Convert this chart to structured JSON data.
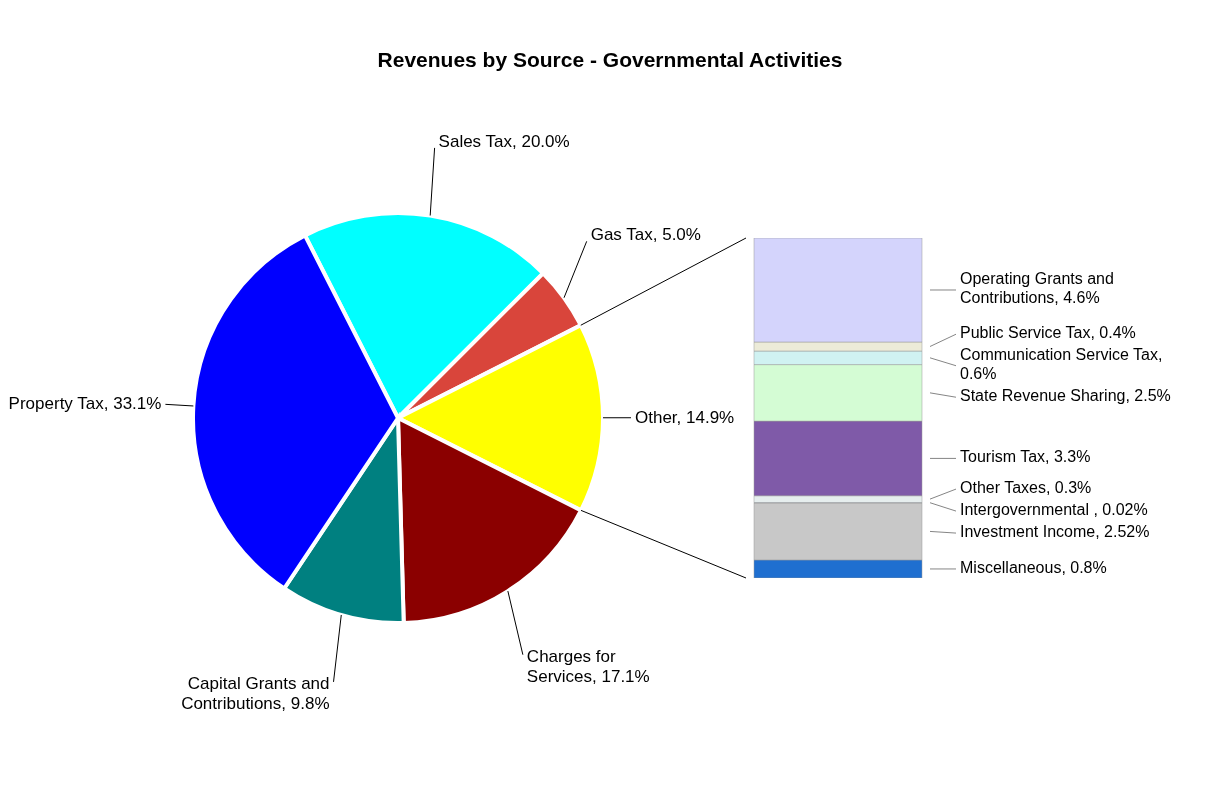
{
  "chart_data": [
    {
      "type": "pie",
      "title": "Revenues by Source - Governmental Activities",
      "categories": [
        "Sales Tax",
        "Gas Tax",
        "Other",
        "Charges for Services",
        "Capital Grants and Contributions",
        "Property Tax"
      ],
      "values": [
        20.0,
        5.0,
        14.9,
        17.1,
        9.8,
        33.1
      ],
      "value_labels": [
        "20.0%",
        "5.0%",
        "14.9%",
        "17.1%",
        "9.8%",
        "33.1%"
      ],
      "colors": [
        "#00ffff",
        "#d9453b",
        "#ffff00",
        "#8b0000",
        "#008080",
        "#0000ff"
      ]
    },
    {
      "type": "bar",
      "stacked": true,
      "categories": [
        null
      ],
      "data_labels": true,
      "series": [
        {
          "name": "Miscellaneous,",
          "color": "#1f6fd0",
          "values": [
            0.8
          ],
          "value_labels": [
            "0.8%"
          ]
        },
        {
          "name": "Investment Income,",
          "color": "#c8c8c8",
          "values": [
            2.52
          ],
          "value_labels": [
            "2.52%"
          ]
        },
        {
          "name": "Intergovernmental ,",
          "color": "#4f81bd",
          "values": [
            0.02
          ],
          "value_labels": [
            "0.02%"
          ]
        },
        {
          "name": "Other Taxes,",
          "color": "#e6eeee",
          "values": [
            0.3
          ],
          "value_labels": [
            "0.3%"
          ]
        },
        {
          "name": "Tourism Tax,",
          "color": "#7f5aa8",
          "values": [
            3.3
          ],
          "value_labels": [
            "3.3%"
          ]
        },
        {
          "name": "State Revenue Sharing,",
          "color": "#d4fcd4",
          "values": [
            2.5
          ],
          "value_labels": [
            "2.5%"
          ]
        },
        {
          "name": "Communication Service Tax,",
          "color": "#d0f2f2",
          "values": [
            0.6
          ],
          "value_labels": [
            "0.6%"
          ]
        },
        {
          "name": "Public Service Tax,",
          "color": "#ecebd8",
          "values": [
            0.4
          ],
          "value_labels": [
            "0.4%"
          ]
        },
        {
          "name": "Operating Grants and Contributions,",
          "color": "#d4d4fc",
          "values": [
            4.6
          ],
          "value_labels": [
            "4.6%"
          ]
        }
      ]
    }
  ]
}
